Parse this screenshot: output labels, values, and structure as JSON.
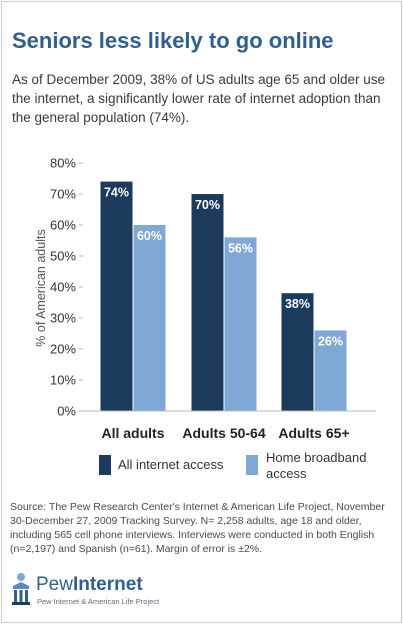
{
  "header": {
    "title": "Seniors less likely to go online",
    "subtitle": "As of December 2009, 38% of US adults age 65 and older use the internet, a significantly lower rate of internet adoption than the general population (74%)."
  },
  "chart_data": {
    "type": "bar",
    "categories": [
      "All adults",
      "Adults 50-64",
      "Adults 65+"
    ],
    "series": [
      {
        "name": "All internet access",
        "values": [
          74,
          70,
          38
        ],
        "labels": [
          "74%",
          "70%",
          "38%"
        ],
        "color": "#1b3a5c"
      },
      {
        "name": "Home broadband access",
        "values": [
          60,
          56,
          26
        ],
        "labels": [
          "60%",
          "56%",
          "26%"
        ],
        "color": "#7fa8d4"
      }
    ],
    "ylabel": "% of American adults",
    "ylim": [
      0,
      80
    ],
    "yticks": [
      0,
      10,
      20,
      30,
      40,
      50,
      60,
      70,
      80
    ],
    "ytick_labels": [
      "0%",
      "10%",
      "20%",
      "30%",
      "40%",
      "50%",
      "60%",
      "70%",
      "80%"
    ],
    "grid": false,
    "legend_position": "bottom"
  },
  "legend": {
    "internet_label": "All internet access",
    "broadband_label_line1": "Home broadband",
    "broadband_label_line2": "access"
  },
  "footer": {
    "source": "Source: The Pew Research Center's Internet & American Life Project, November 30-December 27, 2009 Tracking Survey. N= 2,258 adults, age 18 and older, including 565 cell phone interviews. Interviews were conducted in both English (n=2,197) and Spanish (n=61). Margin of error is ±2%.",
    "logo_word_1": "Pew",
    "logo_word_2": "Internet",
    "logo_sub": "Pew Internet & American Life Project"
  },
  "colors": {
    "title": "#2f5f8f",
    "series_1": "#1b3a5c",
    "series_2": "#7fa8d4"
  }
}
